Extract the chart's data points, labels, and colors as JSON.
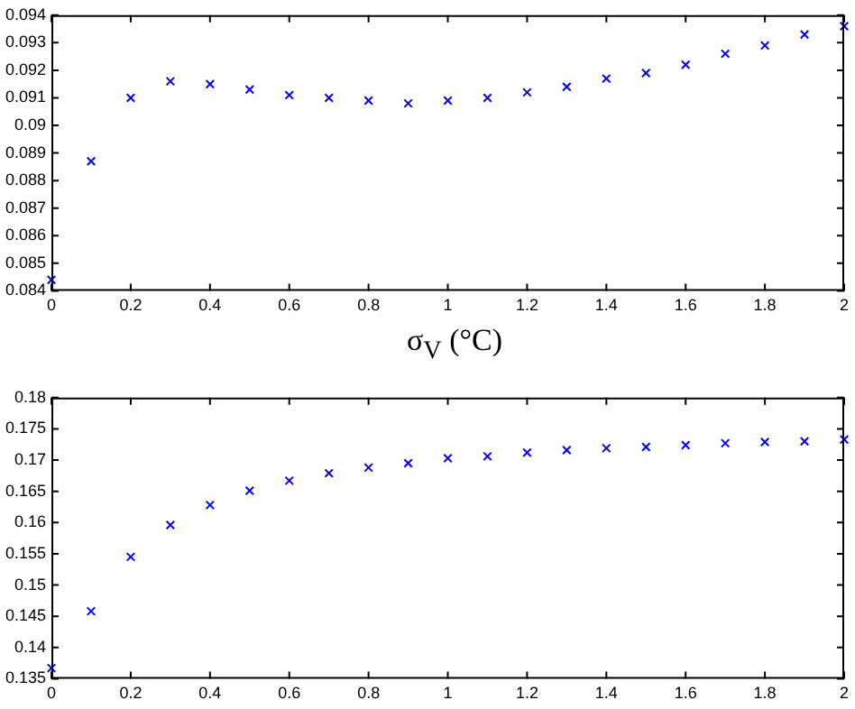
{
  "chart_data": [
    {
      "type": "scatter",
      "xlabel": "σ$_{V}$ (°C)",
      "marker": "cross",
      "color": "#0000ff",
      "x": [
        0,
        0.1,
        0.2,
        0.3,
        0.4,
        0.5,
        0.6,
        0.7,
        0.8,
        0.9,
        1,
        1.1,
        1.2,
        1.3,
        1.4,
        1.5,
        1.6,
        1.7,
        1.8,
        1.9,
        2
      ],
      "values": [
        0.0844,
        0.0887,
        0.091,
        0.0916,
        0.0915,
        0.0913,
        0.0911,
        0.091,
        0.0909,
        0.0908,
        0.0909,
        0.091,
        0.0912,
        0.0914,
        0.0917,
        0.0919,
        0.0922,
        0.0926,
        0.0929,
        0.0933,
        0.0936
      ],
      "xlim": [
        0,
        2
      ],
      "xticks": [
        0,
        0.2,
        0.4,
        0.6,
        0.8,
        1,
        1.2,
        1.4,
        1.6,
        1.8,
        2
      ],
      "ylim": [
        0.084,
        0.094
      ],
      "yticks": [
        0.084,
        0.085,
        0.086,
        0.087,
        0.088,
        0.089,
        0.09,
        0.091,
        0.092,
        0.093,
        0.094
      ],
      "grid": false,
      "legend": false
    },
    {
      "type": "scatter",
      "marker": "cross",
      "color": "#0000ff",
      "x": [
        0,
        0.1,
        0.2,
        0.3,
        0.4,
        0.5,
        0.6,
        0.7,
        0.8,
        0.9,
        1,
        1.1,
        1.2,
        1.3,
        1.4,
        1.5,
        1.6,
        1.7,
        1.8,
        1.9,
        2
      ],
      "values": [
        0.1367,
        0.1458,
        0.1545,
        0.1596,
        0.1628,
        0.1651,
        0.1667,
        0.1679,
        0.1688,
        0.1695,
        0.1703,
        0.1706,
        0.1712,
        0.1716,
        0.1719,
        0.1721,
        0.1724,
        0.1727,
        0.1729,
        0.173,
        0.1733
      ],
      "xlim": [
        0,
        2
      ],
      "xticks": [
        0,
        0.2,
        0.4,
        0.6,
        0.8,
        1,
        1.2,
        1.4,
        1.6,
        1.8,
        2
      ],
      "ylim": [
        0.135,
        0.18
      ],
      "yticks": [
        0.135,
        0.14,
        0.145,
        0.15,
        0.155,
        0.16,
        0.165,
        0.17,
        0.175,
        0.18
      ],
      "grid": false,
      "legend": false
    }
  ]
}
